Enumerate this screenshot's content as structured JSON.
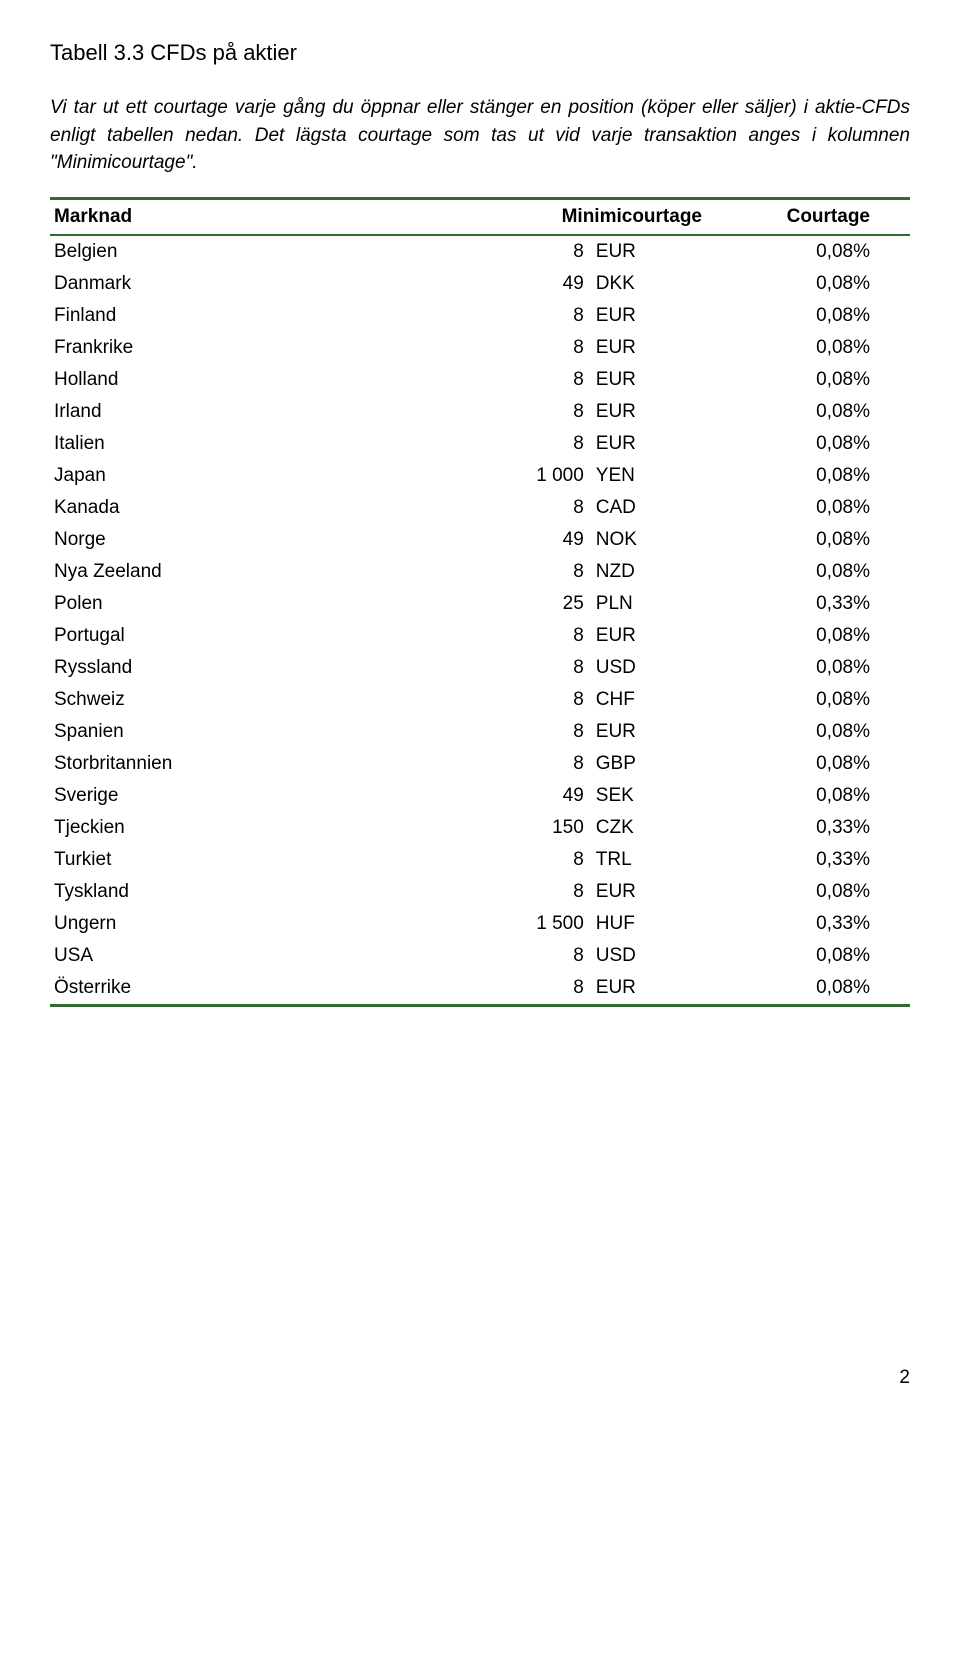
{
  "title": "Tabell 3.3 CFDs på aktier",
  "intro": "Vi tar ut ett courtage varje gång du öppnar eller stänger en position (köper eller säljer) i aktie-CFDs enligt tabellen nedan. Det lägsta courtage som tas ut vid varje transaktion anges i kolumnen \"Minimicourtage\".",
  "headers": {
    "market": "Marknad",
    "mini": "Minimicourtage",
    "courtage": "Courtage"
  },
  "rows": [
    {
      "market": "Belgien",
      "amount": "8",
      "currency": "EUR",
      "pct": "0,08%"
    },
    {
      "market": "Danmark",
      "amount": "49",
      "currency": "DKK",
      "pct": "0,08%"
    },
    {
      "market": "Finland",
      "amount": "8",
      "currency": "EUR",
      "pct": "0,08%"
    },
    {
      "market": "Frankrike",
      "amount": "8",
      "currency": "EUR",
      "pct": "0,08%"
    },
    {
      "market": "Holland",
      "amount": "8",
      "currency": "EUR",
      "pct": "0,08%"
    },
    {
      "market": "Irland",
      "amount": "8",
      "currency": "EUR",
      "pct": "0,08%"
    },
    {
      "market": "Italien",
      "amount": "8",
      "currency": "EUR",
      "pct": "0,08%"
    },
    {
      "market": "Japan",
      "amount": "1 000",
      "currency": "YEN",
      "pct": "0,08%"
    },
    {
      "market": "Kanada",
      "amount": "8",
      "currency": "CAD",
      "pct": "0,08%"
    },
    {
      "market": "Norge",
      "amount": "49",
      "currency": "NOK",
      "pct": "0,08%"
    },
    {
      "market": "Nya Zeeland",
      "amount": "8",
      "currency": "NZD",
      "pct": "0,08%"
    },
    {
      "market": "Polen",
      "amount": "25",
      "currency": "PLN",
      "pct": "0,33%"
    },
    {
      "market": "Portugal",
      "amount": "8",
      "currency": "EUR",
      "pct": "0,08%"
    },
    {
      "market": "Ryssland",
      "amount": "8",
      "currency": "USD",
      "pct": "0,08%"
    },
    {
      "market": "Schweiz",
      "amount": "8",
      "currency": "CHF",
      "pct": "0,08%"
    },
    {
      "market": "Spanien",
      "amount": "8",
      "currency": "EUR",
      "pct": "0,08%"
    },
    {
      "market": "Storbritannien",
      "amount": "8",
      "currency": "GBP",
      "pct": "0,08%"
    },
    {
      "market": "Sverige",
      "amount": "49",
      "currency": "SEK",
      "pct": "0,08%"
    },
    {
      "market": "Tjeckien",
      "amount": "150",
      "currency": "CZK",
      "pct": "0,33%"
    },
    {
      "market": "Turkiet",
      "amount": "8",
      "currency": "TRL",
      "pct": "0,33%"
    },
    {
      "market": "Tyskland",
      "amount": "8",
      "currency": "EUR",
      "pct": "0,08%"
    },
    {
      "market": "Ungern",
      "amount": "1 500",
      "currency": "HUF",
      "pct": "0,33%"
    },
    {
      "market": "USA",
      "amount": "8",
      "currency": "USD",
      "pct": "0,08%"
    },
    {
      "market": "Österrike",
      "amount": "8",
      "currency": "EUR",
      "pct": "0,08%"
    }
  ],
  "pageNumber": "2",
  "colors": {
    "border": "#2f6b2f",
    "text": "#000000",
    "bg": "#ffffff"
  }
}
